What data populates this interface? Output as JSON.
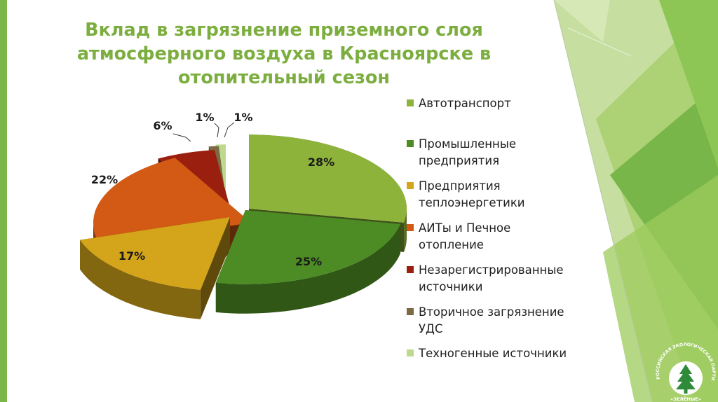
{
  "slide": {
    "title_lines": [
      "Вклад в загрязнение приземного слоя",
      "атмосферного воздуха в Красноярске в",
      "отопительный сезон"
    ],
    "accent_color": "#7cae3f"
  },
  "chart_data": {
    "type": "pie",
    "title": "Вклад в загрязнение приземного слоя атмосферного воздуха в Красноярске в отопительный сезон",
    "exploded": true,
    "three_d": true,
    "legend_position": "right",
    "series": [
      {
        "labels": [
          "Автотранспорт",
          "Промышленные\nпредприятия",
          "Предприятия\nтеплоэнергетики",
          "АИТы и Печное\nотопление",
          "Незарегистрированные\nисточники",
          "Вторичное загрязнение\nУДС",
          "Техногенные источники"
        ],
        "values": [
          28,
          25,
          17,
          22,
          6,
          1,
          1
        ],
        "data_labels": [
          "28%",
          "25%",
          "17%",
          "22%",
          "6%",
          "1%",
          "1%"
        ],
        "colors": [
          "#8db33a",
          "#4d8c24",
          "#d4a51a",
          "#d25a14",
          "#9b1f0f",
          "#7c6a42",
          "#bcd98e"
        ]
      }
    ]
  },
  "logo": {
    "arc_text": "РОССИЙСКАЯ ЭКОЛОГИЧЕСКАЯ ПАРТИЯ",
    "bottom_text": "«ЗЕЛЁНЫЕ»",
    "icon": "tree-icon"
  }
}
